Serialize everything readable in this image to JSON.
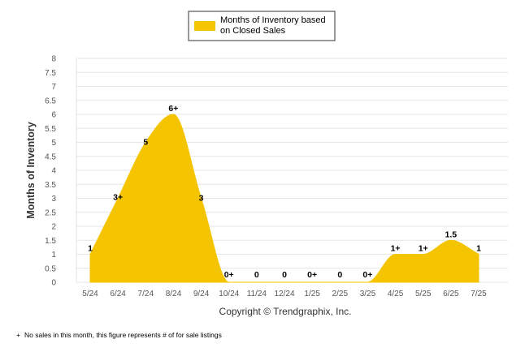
{
  "chart_data": {
    "type": "area",
    "categories": [
      "5/24",
      "6/24",
      "7/24",
      "8/24",
      "9/24",
      "10/24",
      "11/24",
      "12/24",
      "1/25",
      "2/25",
      "3/25",
      "4/25",
      "5/25",
      "6/25",
      "7/25"
    ],
    "series": [
      {
        "name": "Months of Inventory based on Closed Sales",
        "values": [
          1,
          3,
          5,
          6,
          3,
          0,
          0,
          0,
          0,
          0,
          0,
          1,
          1,
          1.5,
          1
        ],
        "data_labels": [
          "1",
          "3+",
          "5",
          "6+",
          "3",
          "0+",
          "0",
          "0",
          "0+",
          "0",
          "0+",
          "1+",
          "1+",
          "1.5",
          "1"
        ],
        "color": "#F5C400"
      }
    ],
    "ylabel": "Months of Inventory",
    "xlabel": "",
    "ylim": [
      0,
      8
    ],
    "yticks": [
      "0",
      "0.5",
      "1",
      "1.5",
      "2",
      "2.5",
      "3",
      "3.5",
      "4",
      "4.5",
      "5",
      "5.5",
      "6",
      "6.5",
      "7",
      "7.5",
      "8"
    ],
    "grid": true,
    "legend_position": "top-center"
  },
  "legend": {
    "line1": "Months of Inventory based",
    "line2": "on Closed Sales",
    "color": "#F5C400"
  },
  "copyright": "Copyright © Trendgraphix, Inc.",
  "footnote_symbol": "+",
  "footnote": "No sales in this month, this figure represents # of for sale listings"
}
